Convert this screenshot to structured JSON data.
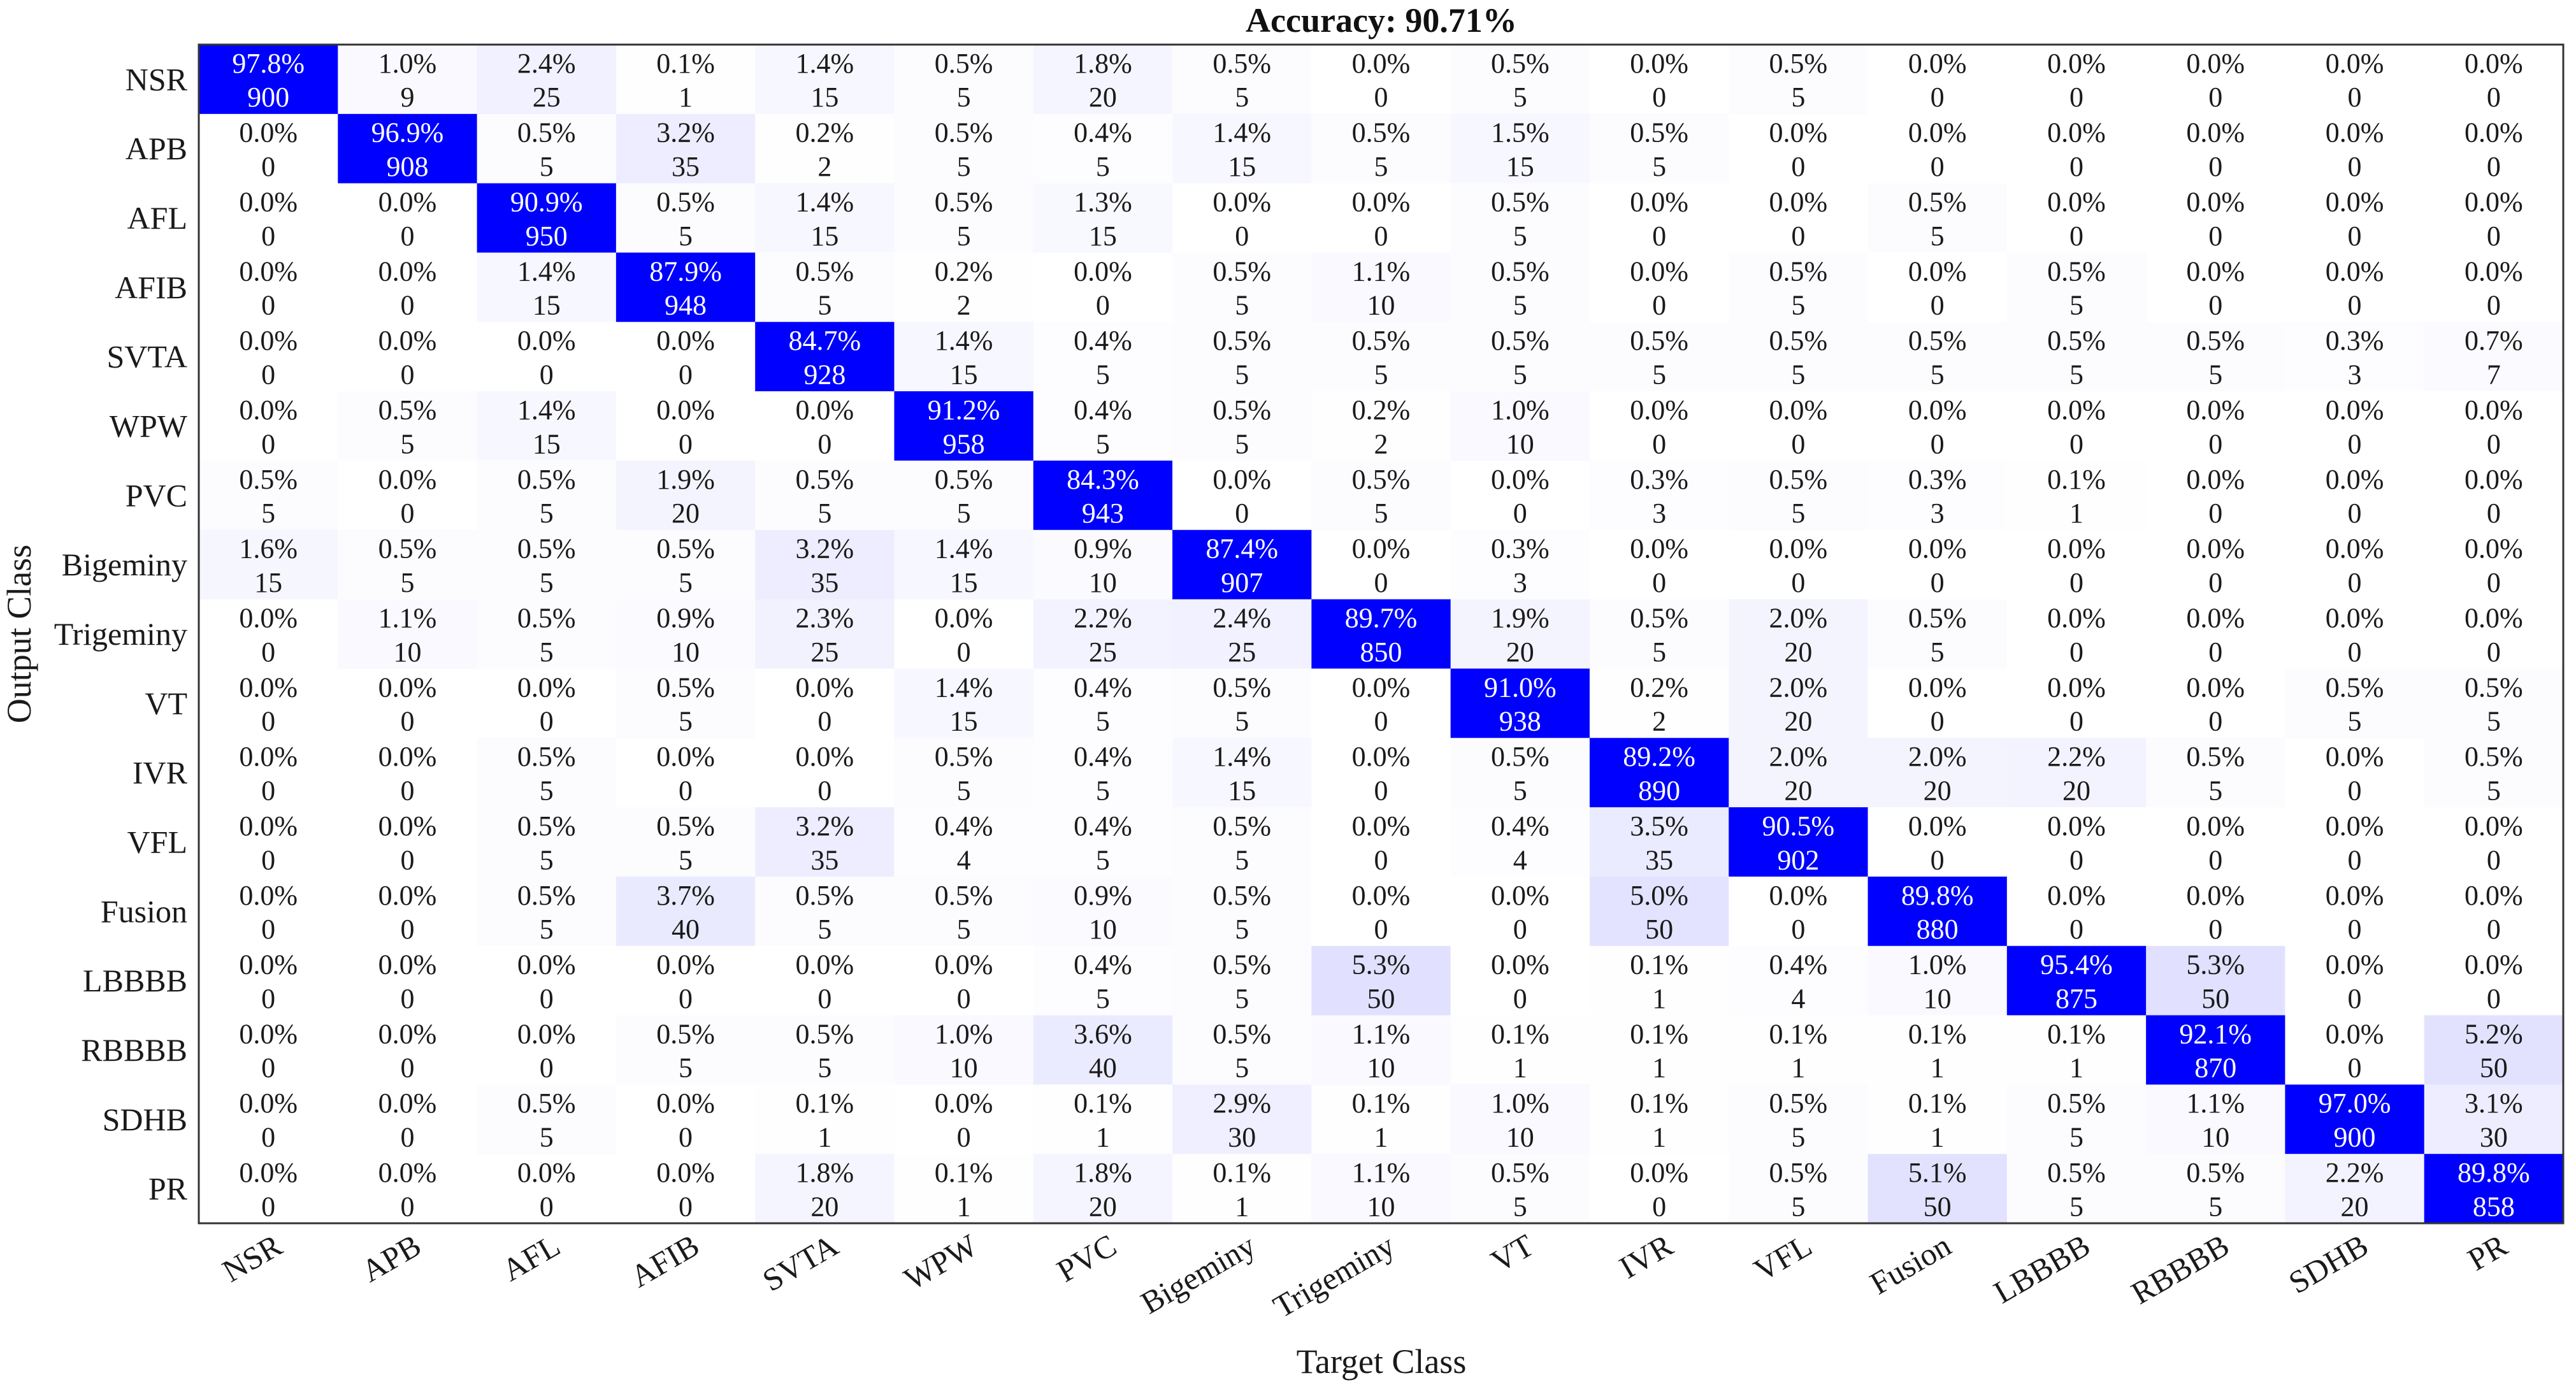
{
  "chart_data": {
    "type": "heatmap",
    "title": "Accuracy: 90.71%",
    "xlabel": "Target Class",
    "ylabel": "Output Class",
    "classes": [
      "NSR",
      "APB",
      "AFL",
      "AFIB",
      "SVTA",
      "WPW",
      "PVC",
      "Bigeminy",
      "Trigeminy",
      "VT",
      "IVR",
      "VFL",
      "Fusion",
      "LBBBB",
      "RBBBB",
      "SDHB",
      "PR"
    ],
    "colors": {
      "high": "#0000ff",
      "low": "#ffffff",
      "text_dark": "#1a1a1a",
      "text_light": "#ffffff"
    },
    "percent": [
      [
        "97.8%",
        "1.0%",
        "2.4%",
        "0.1%",
        "1.4%",
        "0.5%",
        "1.8%",
        "0.5%",
        "0.0%",
        "0.5%",
        "0.0%",
        "0.5%",
        "0.0%",
        "0.0%",
        "0.0%",
        "0.0%",
        "0.0%"
      ],
      [
        "0.0%",
        "96.9%",
        "0.5%",
        "3.2%",
        "0.2%",
        "0.5%",
        "0.4%",
        "1.4%",
        "0.5%",
        "1.5%",
        "0.5%",
        "0.0%",
        "0.0%",
        "0.0%",
        "0.0%",
        "0.0%",
        "0.0%"
      ],
      [
        "0.0%",
        "0.0%",
        "90.9%",
        "0.5%",
        "1.4%",
        "0.5%",
        "1.3%",
        "0.0%",
        "0.0%",
        "0.5%",
        "0.0%",
        "0.0%",
        "0.5%",
        "0.0%",
        "0.0%",
        "0.0%",
        "0.0%"
      ],
      [
        "0.0%",
        "0.0%",
        "1.4%",
        "87.9%",
        "0.5%",
        "0.2%",
        "0.0%",
        "0.5%",
        "1.1%",
        "0.5%",
        "0.0%",
        "0.5%",
        "0.0%",
        "0.5%",
        "0.0%",
        "0.0%",
        "0.0%"
      ],
      [
        "0.0%",
        "0.0%",
        "0.0%",
        "0.0%",
        "84.7%",
        "1.4%",
        "0.4%",
        "0.5%",
        "0.5%",
        "0.5%",
        "0.5%",
        "0.5%",
        "0.5%",
        "0.5%",
        "0.5%",
        "0.3%",
        "0.7%"
      ],
      [
        "0.0%",
        "0.5%",
        "1.4%",
        "0.0%",
        "0.0%",
        "91.2%",
        "0.4%",
        "0.5%",
        "0.2%",
        "1.0%",
        "0.0%",
        "0.0%",
        "0.0%",
        "0.0%",
        "0.0%",
        "0.0%",
        "0.0%"
      ],
      [
        "0.5%",
        "0.0%",
        "0.5%",
        "1.9%",
        "0.5%",
        "0.5%",
        "84.3%",
        "0.0%",
        "0.5%",
        "0.0%",
        "0.3%",
        "0.5%",
        "0.3%",
        "0.1%",
        "0.0%",
        "0.0%",
        "0.0%"
      ],
      [
        "1.6%",
        "0.5%",
        "0.5%",
        "0.5%",
        "3.2%",
        "1.4%",
        "0.9%",
        "87.4%",
        "0.0%",
        "0.3%",
        "0.0%",
        "0.0%",
        "0.0%",
        "0.0%",
        "0.0%",
        "0.0%",
        "0.0%"
      ],
      [
        "0.0%",
        "1.1%",
        "0.5%",
        "0.9%",
        "2.3%",
        "0.0%",
        "2.2%",
        "2.4%",
        "89.7%",
        "1.9%",
        "0.5%",
        "2.0%",
        "0.5%",
        "0.0%",
        "0.0%",
        "0.0%",
        "0.0%"
      ],
      [
        "0.0%",
        "0.0%",
        "0.0%",
        "0.5%",
        "0.0%",
        "1.4%",
        "0.4%",
        "0.5%",
        "0.0%",
        "91.0%",
        "0.2%",
        "2.0%",
        "0.0%",
        "0.0%",
        "0.0%",
        "0.5%",
        "0.5%"
      ],
      [
        "0.0%",
        "0.0%",
        "0.5%",
        "0.0%",
        "0.0%",
        "0.5%",
        "0.4%",
        "1.4%",
        "0.0%",
        "0.5%",
        "89.2%",
        "2.0%",
        "2.0%",
        "2.2%",
        "0.5%",
        "0.0%",
        "0.5%"
      ],
      [
        "0.0%",
        "0.0%",
        "0.5%",
        "0.5%",
        "3.2%",
        "0.4%",
        "0.4%",
        "0.5%",
        "0.0%",
        "0.4%",
        "3.5%",
        "90.5%",
        "0.0%",
        "0.0%",
        "0.0%",
        "0.0%",
        "0.0%"
      ],
      [
        "0.0%",
        "0.0%",
        "0.5%",
        "3.7%",
        "0.5%",
        "0.5%",
        "0.9%",
        "0.5%",
        "0.0%",
        "0.0%",
        "5.0%",
        "0.0%",
        "89.8%",
        "0.0%",
        "0.0%",
        "0.0%",
        "0.0%"
      ],
      [
        "0.0%",
        "0.0%",
        "0.0%",
        "0.0%",
        "0.0%",
        "0.0%",
        "0.4%",
        "0.5%",
        "5.3%",
        "0.0%",
        "0.1%",
        "0.4%",
        "1.0%",
        "95.4%",
        "5.3%",
        "0.0%",
        "0.0%"
      ],
      [
        "0.0%",
        "0.0%",
        "0.0%",
        "0.5%",
        "0.5%",
        "1.0%",
        "3.6%",
        "0.5%",
        "1.1%",
        "0.1%",
        "0.1%",
        "0.1%",
        "0.1%",
        "0.1%",
        "92.1%",
        "0.0%",
        "5.2%"
      ],
      [
        "0.0%",
        "0.0%",
        "0.5%",
        "0.0%",
        "0.1%",
        "0.0%",
        "0.1%",
        "2.9%",
        "0.1%",
        "1.0%",
        "0.1%",
        "0.5%",
        "0.1%",
        "0.5%",
        "1.1%",
        "97.0%",
        "3.1%"
      ],
      [
        "0.0%",
        "0.0%",
        "0.0%",
        "0.0%",
        "1.8%",
        "0.1%",
        "1.8%",
        "0.1%",
        "1.1%",
        "0.5%",
        "0.0%",
        "0.5%",
        "5.1%",
        "0.5%",
        "0.5%",
        "2.2%",
        "89.8%"
      ]
    ],
    "counts": [
      [
        900,
        9,
        25,
        1,
        15,
        5,
        20,
        5,
        0,
        5,
        0,
        5,
        0,
        0,
        0,
        0,
        0
      ],
      [
        0,
        908,
        5,
        35,
        2,
        5,
        5,
        15,
        5,
        15,
        5,
        0,
        0,
        0,
        0,
        0,
        0
      ],
      [
        0,
        0,
        950,
        5,
        15,
        5,
        15,
        0,
        0,
        5,
        0,
        0,
        5,
        0,
        0,
        0,
        0
      ],
      [
        0,
        0,
        15,
        948,
        5,
        2,
        0,
        5,
        10,
        5,
        0,
        5,
        0,
        5,
        0,
        0,
        0
      ],
      [
        0,
        0,
        0,
        0,
        928,
        15,
        5,
        5,
        5,
        5,
        5,
        5,
        5,
        5,
        5,
        3,
        7
      ],
      [
        0,
        5,
        15,
        0,
        0,
        958,
        5,
        5,
        2,
        10,
        0,
        0,
        0,
        0,
        0,
        0,
        0
      ],
      [
        5,
        0,
        5,
        20,
        5,
        5,
        943,
        0,
        5,
        0,
        3,
        5,
        3,
        1,
        0,
        0,
        0
      ],
      [
        15,
        5,
        5,
        5,
        35,
        15,
        10,
        907,
        0,
        3,
        0,
        0,
        0,
        0,
        0,
        0,
        0
      ],
      [
        0,
        10,
        5,
        10,
        25,
        0,
        25,
        25,
        850,
        20,
        5,
        20,
        5,
        0,
        0,
        0,
        0
      ],
      [
        0,
        0,
        0,
        5,
        0,
        15,
        5,
        5,
        0,
        938,
        2,
        20,
        0,
        0,
        0,
        5,
        5
      ],
      [
        0,
        0,
        5,
        0,
        0,
        5,
        5,
        15,
        0,
        5,
        890,
        20,
        20,
        20,
        5,
        0,
        5
      ],
      [
        0,
        0,
        5,
        5,
        35,
        4,
        5,
        5,
        0,
        4,
        35,
        902,
        0,
        0,
        0,
        0,
        0
      ],
      [
        0,
        0,
        5,
        40,
        5,
        5,
        10,
        5,
        0,
        0,
        50,
        0,
        880,
        0,
        0,
        0,
        0
      ],
      [
        0,
        0,
        0,
        0,
        0,
        0,
        5,
        5,
        50,
        0,
        1,
        4,
        10,
        875,
        50,
        0,
        0
      ],
      [
        0,
        0,
        0,
        5,
        5,
        10,
        40,
        5,
        10,
        1,
        1,
        1,
        1,
        1,
        870,
        0,
        50
      ],
      [
        0,
        0,
        5,
        0,
        1,
        0,
        1,
        30,
        1,
        10,
        1,
        5,
        1,
        5,
        10,
        900,
        30
      ],
      [
        0,
        0,
        0,
        0,
        20,
        1,
        20,
        1,
        10,
        5,
        0,
        5,
        50,
        5,
        5,
        20,
        858
      ]
    ]
  }
}
